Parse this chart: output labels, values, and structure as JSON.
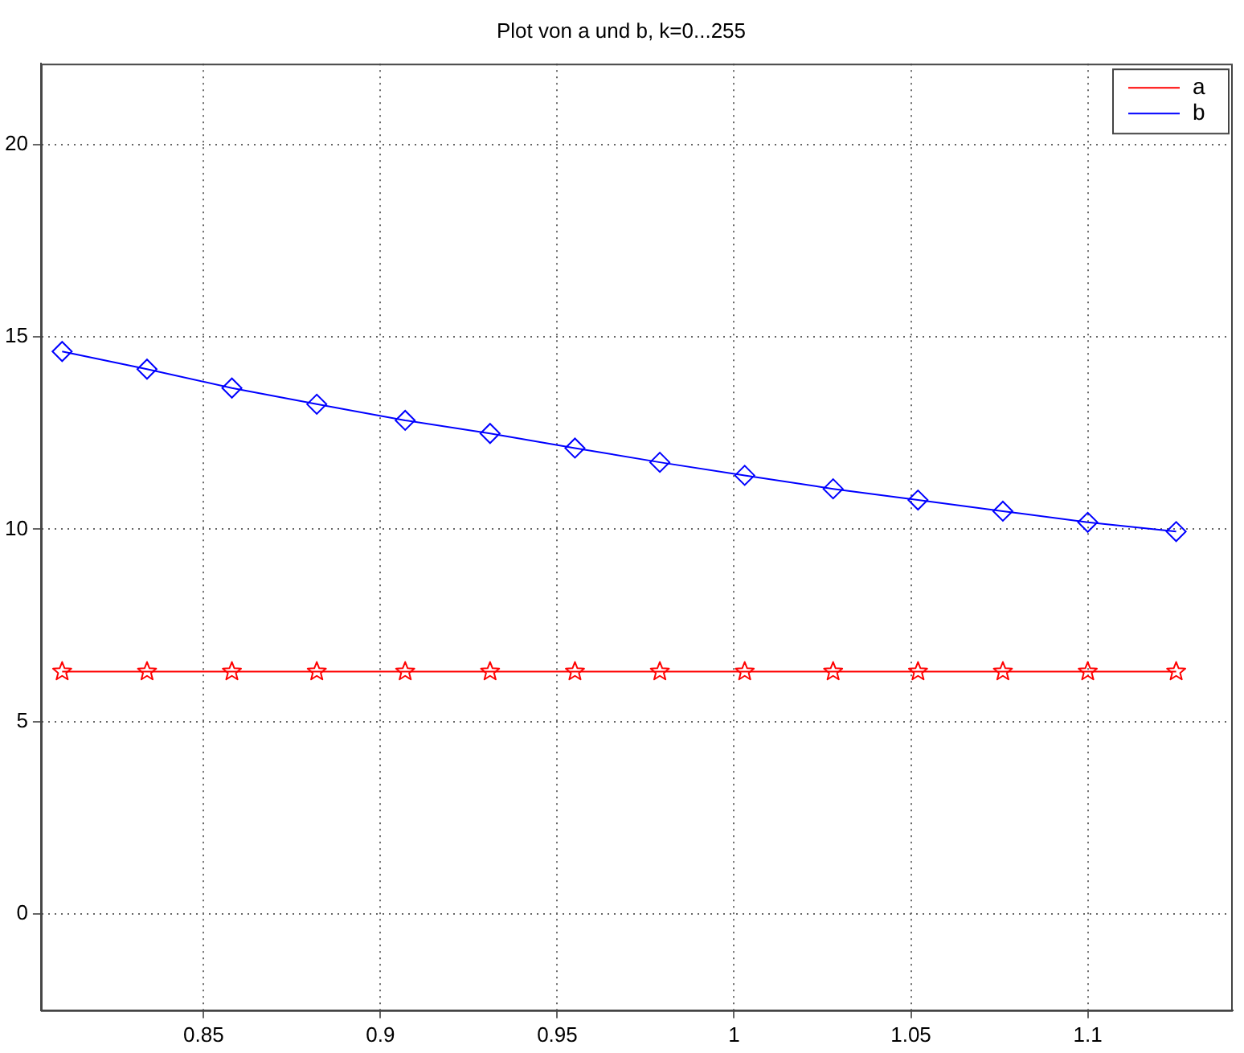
{
  "chart_data": {
    "type": "line",
    "title": "Plot von a und b, k=0...255",
    "x": [
      0.81,
      0.834,
      0.858,
      0.882,
      0.907,
      0.931,
      0.955,
      0.979,
      1.003,
      1.028,
      1.052,
      1.076,
      1.1,
      1.125
    ],
    "series": [
      {
        "name": "a",
        "color": "#ff0000",
        "marker": "star",
        "values": [
          6.3,
          6.3,
          6.3,
          6.3,
          6.3,
          6.3,
          6.3,
          6.3,
          6.3,
          6.3,
          6.3,
          6.3,
          6.3,
          6.3
        ]
      },
      {
        "name": "b",
        "color": "#0000ff",
        "marker": "diamond",
        "values": [
          14.62,
          14.16,
          13.67,
          13.25,
          12.83,
          12.49,
          12.11,
          11.74,
          11.4,
          11.05,
          10.76,
          10.47,
          10.18,
          9.94
        ]
      }
    ],
    "xlim": [
      0.804,
      1.141
    ],
    "xticks": [
      0.85,
      0.9,
      0.95,
      1,
      1.05,
      1.1
    ],
    "ylim": [
      -2.5,
      22.1
    ],
    "yticks": [
      0,
      5,
      10,
      15,
      20
    ],
    "grid": true,
    "legend": "top right",
    "line_style": "solid"
  }
}
